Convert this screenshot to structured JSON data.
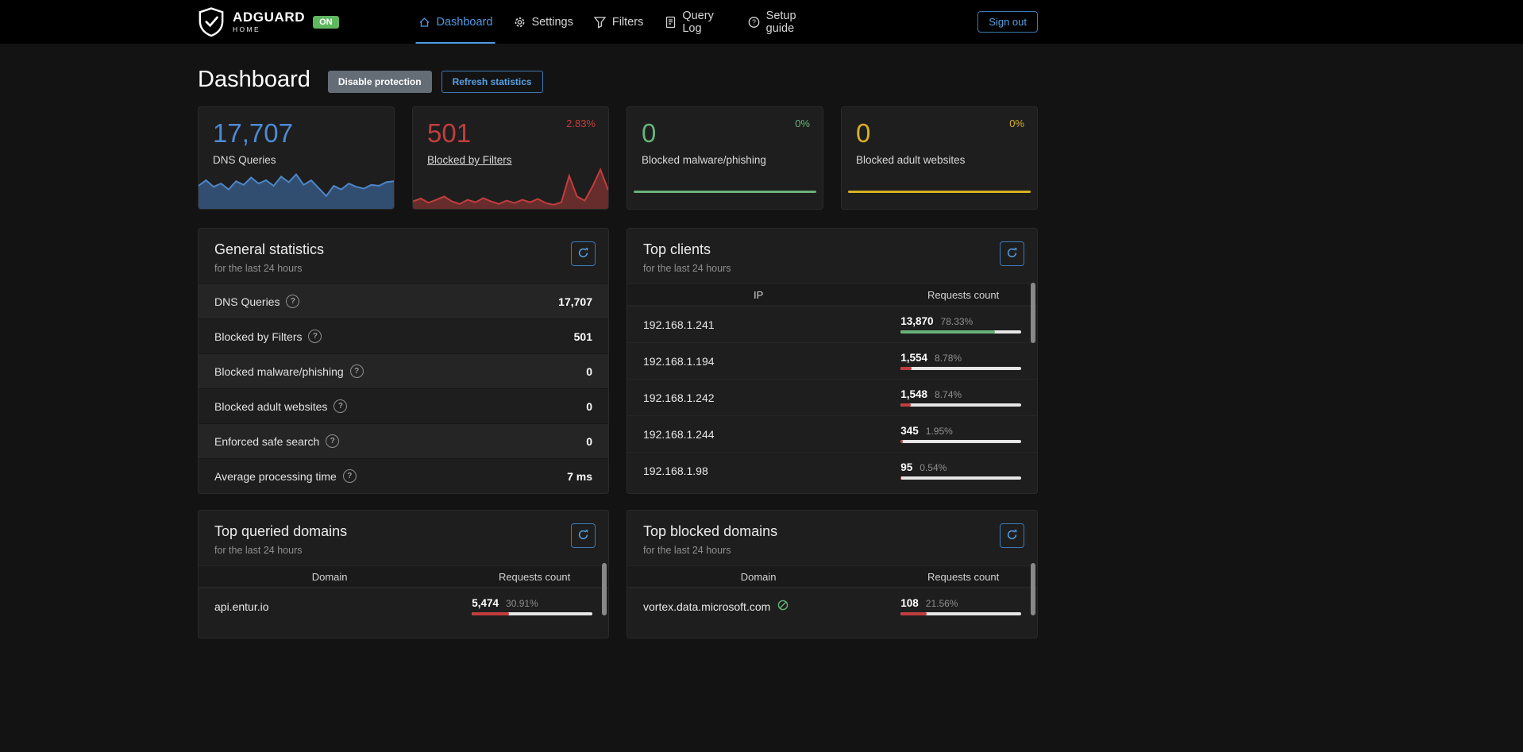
{
  "icons": {
    "help": "?"
  },
  "navbar": {
    "brand": {
      "title": "ADGUARD",
      "subtitle": "HOME",
      "status_badge": "ON"
    },
    "items": [
      {
        "label": "Dashboard"
      },
      {
        "label": "Settings"
      },
      {
        "label": "Filters"
      },
      {
        "label": "Query Log"
      },
      {
        "label": "Setup guide"
      }
    ],
    "signout_label": "Sign out"
  },
  "page": {
    "title": "Dashboard",
    "buttons": {
      "disable_protection": "Disable protection",
      "refresh_statistics": "Refresh statistics"
    }
  },
  "stat_cards": [
    {
      "value": "17,707",
      "label": "DNS Queries",
      "percent": "",
      "accent": "#4c8bd4"
    },
    {
      "value": "501",
      "label": "Blocked by Filters",
      "percent": "2.83%",
      "accent": "#c13e3e"
    },
    {
      "value": "0",
      "label": "Blocked malware/phishing",
      "percent": "0%",
      "accent": "#67b279"
    },
    {
      "value": "0",
      "label": "Blocked adult websites",
      "percent": "0%",
      "accent": "#d9b023"
    }
  ],
  "chart_data": [
    {
      "type": "area",
      "name": "dns-queries-sparkline",
      "color": "#4e86c8",
      "fill": "rgba(66,118,183,0.55)",
      "points": [
        0.5,
        0.62,
        0.48,
        0.55,
        0.42,
        0.6,
        0.52,
        0.68,
        0.55,
        0.62,
        0.5,
        0.7,
        0.58,
        0.75,
        0.52,
        0.62,
        0.45,
        0.28,
        0.5,
        0.42,
        0.55,
        0.48,
        0.44,
        0.52,
        0.5,
        0.58,
        0.6
      ]
    },
    {
      "type": "area",
      "name": "blocked-by-filters-sparkline",
      "color": "#c23d3d",
      "fill": "rgba(194,61,61,0.45)",
      "points": [
        0.18,
        0.25,
        0.15,
        0.22,
        0.3,
        0.18,
        0.12,
        0.22,
        0.16,
        0.26,
        0.18,
        0.12,
        0.2,
        0.14,
        0.22,
        0.16,
        0.24,
        0.14,
        0.1,
        0.16,
        0.8,
        0.3,
        0.2,
        0.55,
        0.95,
        0.45
      ]
    }
  ],
  "general_statistics": {
    "title": "General statistics",
    "subtitle": "for the last 24 hours",
    "rows": [
      {
        "label": "DNS Queries",
        "value": "17,707"
      },
      {
        "label": "Blocked by Filters",
        "value": "501"
      },
      {
        "label": "Blocked malware/phishing",
        "value": "0"
      },
      {
        "label": "Blocked adult websites",
        "value": "0"
      },
      {
        "label": "Enforced safe search",
        "value": "0"
      },
      {
        "label": "Average processing time",
        "value": "7 ms"
      }
    ]
  },
  "top_clients": {
    "title": "Top clients",
    "subtitle": "for the last 24 hours",
    "col_ip": "IP",
    "col_count": "Requests count",
    "rows": [
      {
        "ip": "192.168.1.241",
        "count": "13,870",
        "percent": "78.33%",
        "bar": 78.33,
        "bar_color": "#67b279"
      },
      {
        "ip": "192.168.1.194",
        "count": "1,554",
        "percent": "8.78%",
        "bar": 8.78,
        "bar_color": "#c23d3d"
      },
      {
        "ip": "192.168.1.242",
        "count": "1,548",
        "percent": "8.74%",
        "bar": 8.74,
        "bar_color": "#c23d3d"
      },
      {
        "ip": "192.168.1.244",
        "count": "345",
        "percent": "1.95%",
        "bar": 1.95,
        "bar_color": "#c23d3d"
      },
      {
        "ip": "192.168.1.98",
        "count": "95",
        "percent": "0.54%",
        "bar": 0.54,
        "bar_color": "#c23d3d"
      }
    ]
  },
  "top_queried_domains": {
    "title": "Top queried domains",
    "subtitle": "for the last 24 hours",
    "col_domain": "Domain",
    "col_count": "Requests count",
    "rows": [
      {
        "domain": "api.entur.io",
        "count": "5,474",
        "percent": "30.91%",
        "bar": 30.91,
        "bar_color": "#c23d3d"
      }
    ]
  },
  "top_blocked_domains": {
    "title": "Top blocked domains",
    "subtitle": "for the last 24 hours",
    "col_domain": "Domain",
    "col_count": "Requests count",
    "rows": [
      {
        "domain": "vortex.data.microsoft.com",
        "count": "108",
        "percent": "21.56%",
        "bar": 21.56,
        "bar_color": "#c23d3d"
      }
    ]
  }
}
